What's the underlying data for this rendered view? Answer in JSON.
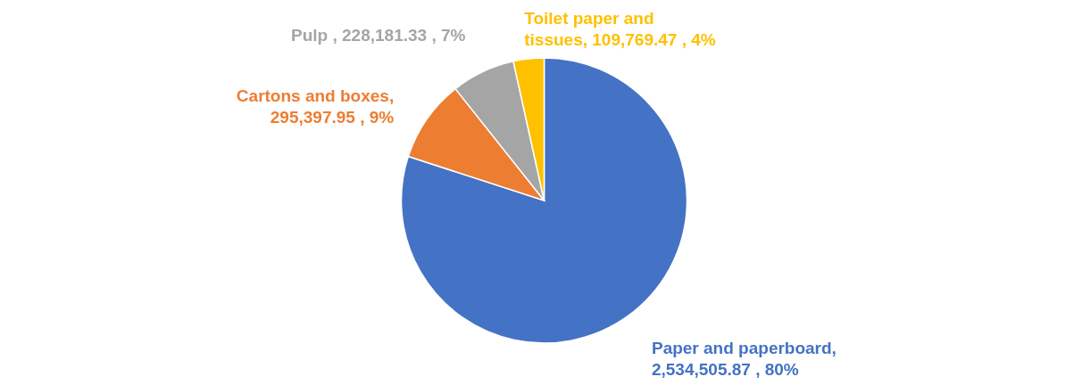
{
  "chart_data": {
    "type": "pie",
    "categories": [
      "Paper and paperboard",
      "Cartons and boxes",
      "Pulp",
      "Toilet paper and tissues"
    ],
    "values": [
      2534505.87,
      295397.95,
      228181.33,
      109769.47
    ],
    "colors": [
      "#4472c4",
      "#ed7d31",
      "#a5a5a5",
      "#ffc000"
    ],
    "value_labels": [
      ", 2,534,505.87 , 80%",
      ", 295,397.95 , 9%",
      " , 228,181.33 , 7%",
      ", 109,769.47 , 4%"
    ]
  }
}
